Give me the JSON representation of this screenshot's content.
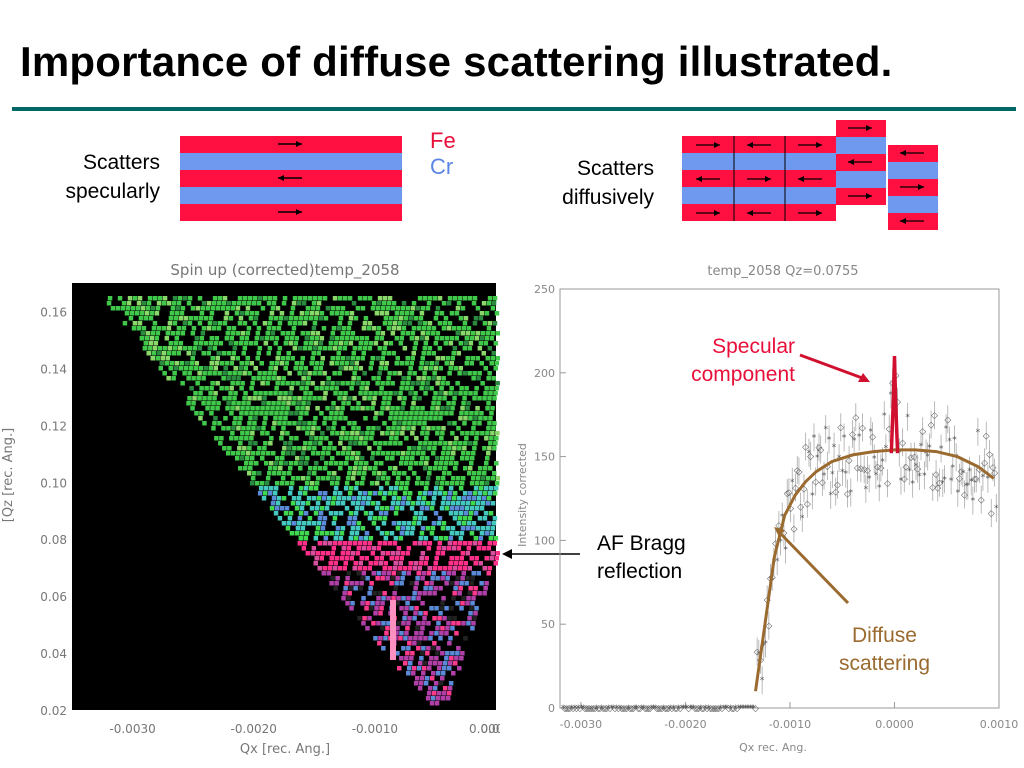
{
  "slide": {
    "title": "Importance of diffuse scattering illustrated.",
    "colors": {
      "rule": "#006666",
      "fe": "#e8103a",
      "cr": "#5b86e5",
      "specular": "#d0102e",
      "diffuse": "#9a6a2f"
    }
  },
  "schematic": {
    "left_label": [
      "Scatters",
      "specularly"
    ],
    "right_label": [
      "Scatters",
      "diffusively"
    ],
    "legend_fe": "Fe",
    "legend_cr": "Cr"
  },
  "annotations": {
    "af_bragg": [
      "AF Bragg",
      "reflection"
    ],
    "specular": [
      "Specular",
      "component"
    ],
    "diffuse": [
      "Diffuse",
      "scattering"
    ]
  },
  "chart_data": [
    {
      "type": "heatmap",
      "title": "Spin up (corrected)temp_2058",
      "xlabel": "Qx [rec. Ang.]",
      "ylabel": "[Qz [rec. Ang.]",
      "xlim": [
        -0.0035,
        0.0
      ],
      "ylim": [
        0.02,
        0.17
      ],
      "xticks": [
        "-0.0030",
        "-0.0020",
        "-0.0010",
        "0.0000",
        "0.0"
      ],
      "yticks": [
        "0.16",
        "0.14",
        "0.12",
        "0.10",
        "0.08",
        "0.06",
        "0.04",
        "0.02"
      ],
      "features": {
        "af_bragg_qz": 0.075
      }
    },
    {
      "type": "scatter",
      "title": "temp_2058 Qz=0.0755",
      "xlabel": "Qx rec. Ang.",
      "ylabel": "Intensity corrected",
      "xlim": [
        -0.0032,
        0.001
      ],
      "ylim": [
        0,
        250
      ],
      "xticks": [
        "-0.0030",
        "-0.0020",
        "-0.0010",
        "0.0000",
        "0.0010"
      ],
      "yticks": [
        "0",
        "50",
        "100",
        "150",
        "200",
        "250"
      ],
      "specular_fit": {
        "x": [
          -3e-05,
          -1e-05,
          0.0,
          1e-05,
          3e-05
        ],
        "y": [
          152,
          185,
          210,
          185,
          152
        ]
      },
      "diffuse_fit": {
        "x": [
          -0.00133,
          -0.00125,
          -0.00115,
          -0.00105,
          -0.00095,
          -0.00085,
          -0.00075,
          -0.0006,
          -0.0004,
          -0.0002,
          0.0,
          0.0002,
          0.0004,
          0.0006,
          0.0008,
          0.00095
        ],
        "y": [
          10,
          45,
          90,
          115,
          127,
          135,
          141,
          147,
          151,
          153,
          154,
          154,
          153,
          150,
          144,
          137
        ]
      }
    }
  ]
}
